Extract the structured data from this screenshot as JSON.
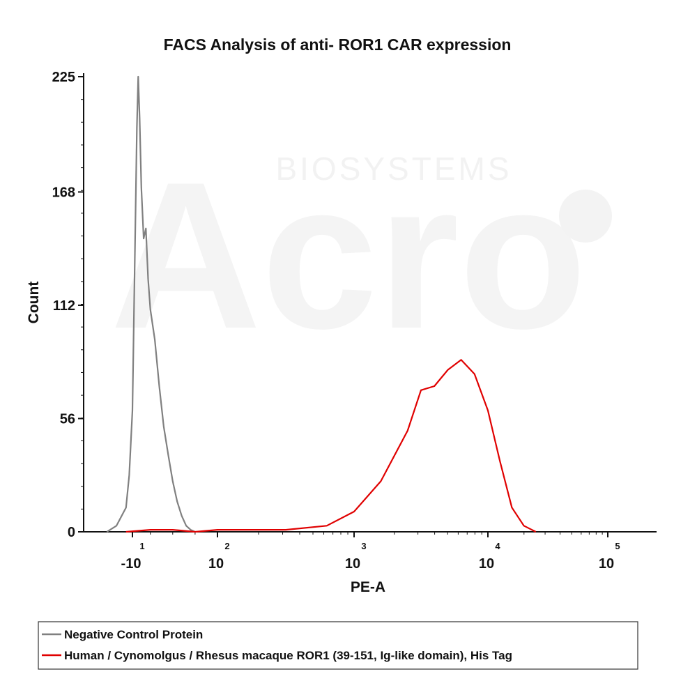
{
  "watermark": {
    "logo": "Acro",
    "subtitle": "BIOSYSTEMS"
  },
  "chart_data": {
    "type": "line",
    "title": "FACS Analysis of anti- ROR1 CAR expression",
    "xlabel": "PE-A",
    "ylabel": "Count",
    "ylim": [
      0,
      225
    ],
    "yticks": [
      0,
      56,
      112,
      168,
      225
    ],
    "x_scale": "biexponential",
    "xticks": [
      {
        "pos": 0.1,
        "base": "-10",
        "exp": "1"
      },
      {
        "pos": 2.0,
        "base": "10",
        "exp": "2"
      },
      {
        "pos": 3.0,
        "base": "10",
        "exp": "3"
      },
      {
        "pos": 4.0,
        "base": "10",
        "exp": "4"
      },
      {
        "pos": 5.0,
        "base": "10",
        "exp": "5"
      }
    ],
    "legend_position": "bottom",
    "grid": false,
    "series": [
      {
        "name": "Negative Control Protein",
        "color": "#808080",
        "points": [
          [
            -0.3,
            0
          ],
          [
            -0.15,
            3
          ],
          [
            0,
            12
          ],
          [
            0.05,
            28
          ],
          [
            0.1,
            60
          ],
          [
            0.15,
            130
          ],
          [
            0.2,
            200
          ],
          [
            0.23,
            225
          ],
          [
            0.26,
            205
          ],
          [
            0.3,
            170
          ],
          [
            0.35,
            145
          ],
          [
            0.4,
            150
          ],
          [
            0.45,
            125
          ],
          [
            0.5,
            110
          ],
          [
            0.6,
            95
          ],
          [
            0.7,
            72
          ],
          [
            0.8,
            52
          ],
          [
            0.9,
            38
          ],
          [
            1.0,
            25
          ],
          [
            1.1,
            15
          ],
          [
            1.2,
            8
          ],
          [
            1.3,
            3
          ],
          [
            1.4,
            1
          ],
          [
            1.5,
            0
          ]
        ]
      },
      {
        "name": "Human / Cynomolgus / Rhesus macaque ROR1 (39-151, Ig-like domain), His Tag",
        "color": "#e00000",
        "points": [
          [
            0,
            0
          ],
          [
            0.5,
            1
          ],
          [
            1.0,
            1
          ],
          [
            1.5,
            0
          ],
          [
            2.0,
            1
          ],
          [
            2.5,
            1
          ],
          [
            2.8,
            3
          ],
          [
            3.0,
            10
          ],
          [
            3.2,
            25
          ],
          [
            3.4,
            50
          ],
          [
            3.5,
            70
          ],
          [
            3.6,
            72
          ],
          [
            3.7,
            80
          ],
          [
            3.8,
            85
          ],
          [
            3.9,
            78
          ],
          [
            4.0,
            60
          ],
          [
            4.1,
            35
          ],
          [
            4.2,
            12
          ],
          [
            4.3,
            3
          ],
          [
            4.4,
            0
          ]
        ]
      }
    ]
  }
}
